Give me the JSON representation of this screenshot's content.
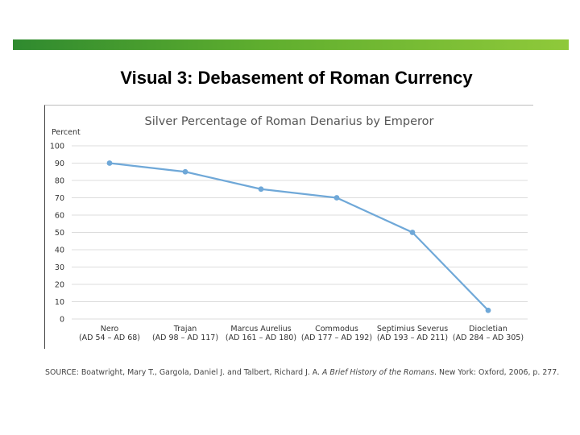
{
  "slide": {
    "title": "Visual 3: Debasement of Roman Currency",
    "accent_color": "#5fae2e"
  },
  "chart_data": {
    "type": "line",
    "title": "Silver Percentage of Roman Denarius by Emperor",
    "ylabel": "Percent",
    "xlabel": "",
    "ylim": [
      0,
      100
    ],
    "yticks": [
      0,
      10,
      20,
      30,
      40,
      50,
      60,
      70,
      80,
      90,
      100
    ],
    "grid": true,
    "legend": "none",
    "line_color": "#6fa8d8",
    "categories": [
      {
        "name": "Nero",
        "years": "(AD 54 – AD 68)"
      },
      {
        "name": "Trajan",
        "years": "(AD 98 – AD 117)"
      },
      {
        "name": "Marcus Aurelius",
        "years": "(AD 161 – AD 180)"
      },
      {
        "name": "Commodus",
        "years": "(AD 177 – AD 192)"
      },
      {
        "name": "Septimius Severus",
        "years": "(AD 193 – AD 211)"
      },
      {
        "name": "Diocletian",
        "years": "(AD 284 – AD 305)"
      }
    ],
    "values": [
      90,
      85,
      75,
      70,
      50,
      5
    ]
  },
  "source": {
    "prefix": "SOURCE: Boatwright, Mary T., Gargola, Daniel J. and Talbert, Richard J. A.",
    "book": "A Brief History of the Romans",
    "suffix": ". New York: Oxford, 2006, p. 277."
  }
}
